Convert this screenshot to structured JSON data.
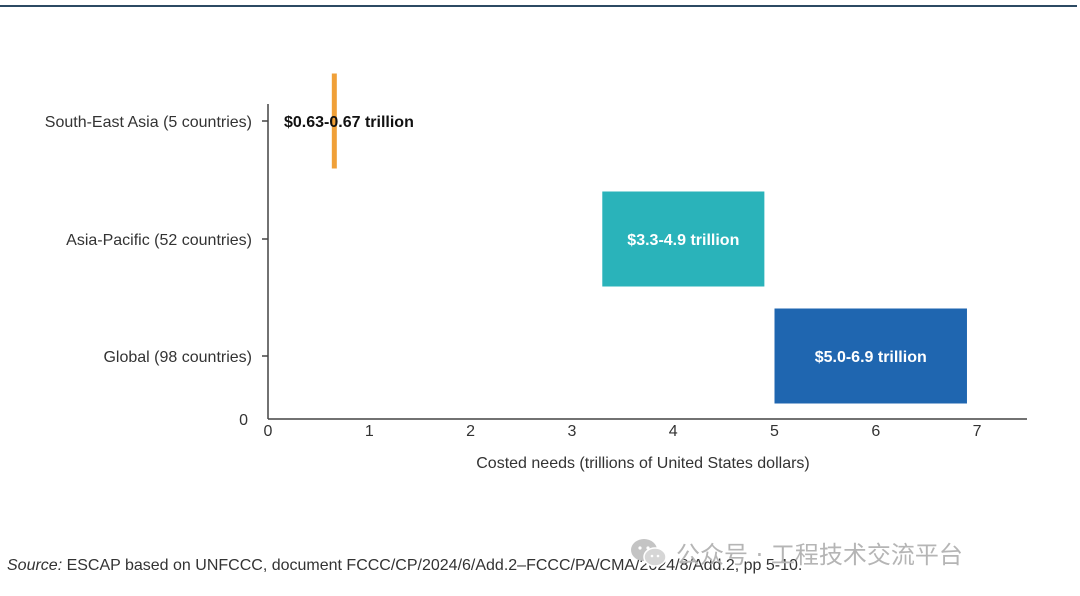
{
  "chart_data": {
    "type": "bar",
    "orientation": "horizontal-range",
    "categories": [
      "South-East Asia (5 countries)",
      "Asia-Pacific (52 countries)",
      "Global (98 countries)"
    ],
    "series": [
      {
        "ranges": [
          [
            0.63,
            0.67
          ],
          [
            3.3,
            4.9
          ],
          [
            5.0,
            6.9
          ]
        ],
        "labels": [
          "$0.63-0.67 trillion",
          "$3.3-4.9 trillion",
          "$5.0-6.9 trillion"
        ],
        "colors": [
          "#f0a038",
          "#2ab3ba",
          "#1f66b0"
        ],
        "label_colors": [
          "#111111",
          "#ffffff",
          "#ffffff"
        ]
      }
    ],
    "xlabel": "Costed needs (trillions of United States dollars)",
    "xlim": [
      0,
      7
    ],
    "xticks": [
      "0",
      "1",
      "2",
      "3",
      "4",
      "5",
      "6",
      "7"
    ],
    "y_zero_label": "0",
    "grid": false,
    "legend": "none"
  },
  "source": {
    "prefix": "Source:",
    "text": " ESCAP based on UNFCCC, document FCCC/CP/2024/6/Add.2–FCCC/PA/CMA/2024/8/Add.2, pp 5-10."
  },
  "watermark": {
    "text": "公众号 · 工程技术交流平台"
  }
}
